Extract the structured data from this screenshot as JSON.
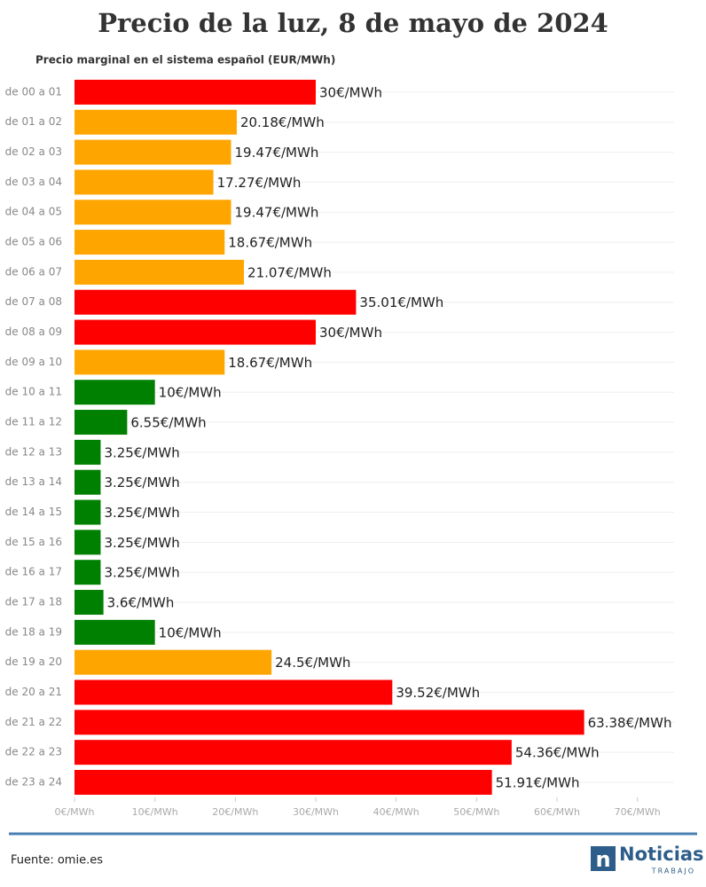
{
  "chart_data": {
    "type": "bar",
    "orientation": "horizontal",
    "title": "Precio de la luz, 8 de mayo de 2024",
    "subtitle": "Precio marginal en el sistema español (EUR/MWh)",
    "categories": [
      "de 00 a 01",
      "de 01 a 02",
      "de 02 a 03",
      "de 03 a 04",
      "de 04 a 05",
      "de 05 a 06",
      "de 06 a 07",
      "de 07 a 08",
      "de 08 a 09",
      "de 09 a 10",
      "de 10 a 11",
      "de 11 a 12",
      "de 12 a 13",
      "de 13 a 14",
      "de 14 a 15",
      "de 15 a 16",
      "de 16 a 17",
      "de 17 a 18",
      "de 18 a 19",
      "de 19 a 20",
      "de 20 a 21",
      "de 21 a 22",
      "de 22 a 23",
      "de 23 a 24"
    ],
    "values": [
      30,
      20.18,
      19.47,
      17.27,
      19.47,
      18.67,
      21.07,
      35.01,
      30,
      18.67,
      10,
      6.55,
      3.25,
      3.25,
      3.25,
      3.25,
      3.25,
      3.6,
      10,
      24.5,
      39.52,
      63.38,
      54.36,
      51.91
    ],
    "value_labels": [
      "30€/MWh",
      "20.18€/MWh",
      "19.47€/MWh",
      "17.27€/MWh",
      "19.47€/MWh",
      "18.67€/MWh",
      "21.07€/MWh",
      "35.01€/MWh",
      "30€/MWh",
      "18.67€/MWh",
      "10€/MWh",
      "6.55€/MWh",
      "3.25€/MWh",
      "3.25€/MWh",
      "3.25€/MWh",
      "3.25€/MWh",
      "3.25€/MWh",
      "3.6€/MWh",
      "10€/MWh",
      "24.5€/MWh",
      "39.52€/MWh",
      "63.38€/MWh",
      "54.36€/MWh",
      "51.91€/MWh"
    ],
    "colors": [
      "#ff0000",
      "#ffa500",
      "#ffa500",
      "#ffa500",
      "#ffa500",
      "#ffa500",
      "#ffa500",
      "#ff0000",
      "#ff0000",
      "#ffa500",
      "#008000",
      "#008000",
      "#008000",
      "#008000",
      "#008000",
      "#008000",
      "#008000",
      "#008000",
      "#008000",
      "#ffa500",
      "#ff0000",
      "#ff0000",
      "#ff0000",
      "#ff0000"
    ],
    "xlim": [
      0,
      75
    ],
    "xticks": [
      {
        "value": 0,
        "label": "0€/MWh"
      },
      {
        "value": 10,
        "label": "10€/MWh"
      },
      {
        "value": 20,
        "label": "20€/MWh"
      },
      {
        "value": 30,
        "label": "30€/MWh"
      },
      {
        "value": 40,
        "label": "40€/MWh"
      },
      {
        "value": 50,
        "label": "50€/MWh"
      },
      {
        "value": 60,
        "label": "60€/MWh"
      },
      {
        "value": 70,
        "label": "70€/MWh"
      }
    ],
    "source": "Fuente: omie.es",
    "logo": {
      "name": "Noticias",
      "sub": "TRABAJO"
    }
  }
}
